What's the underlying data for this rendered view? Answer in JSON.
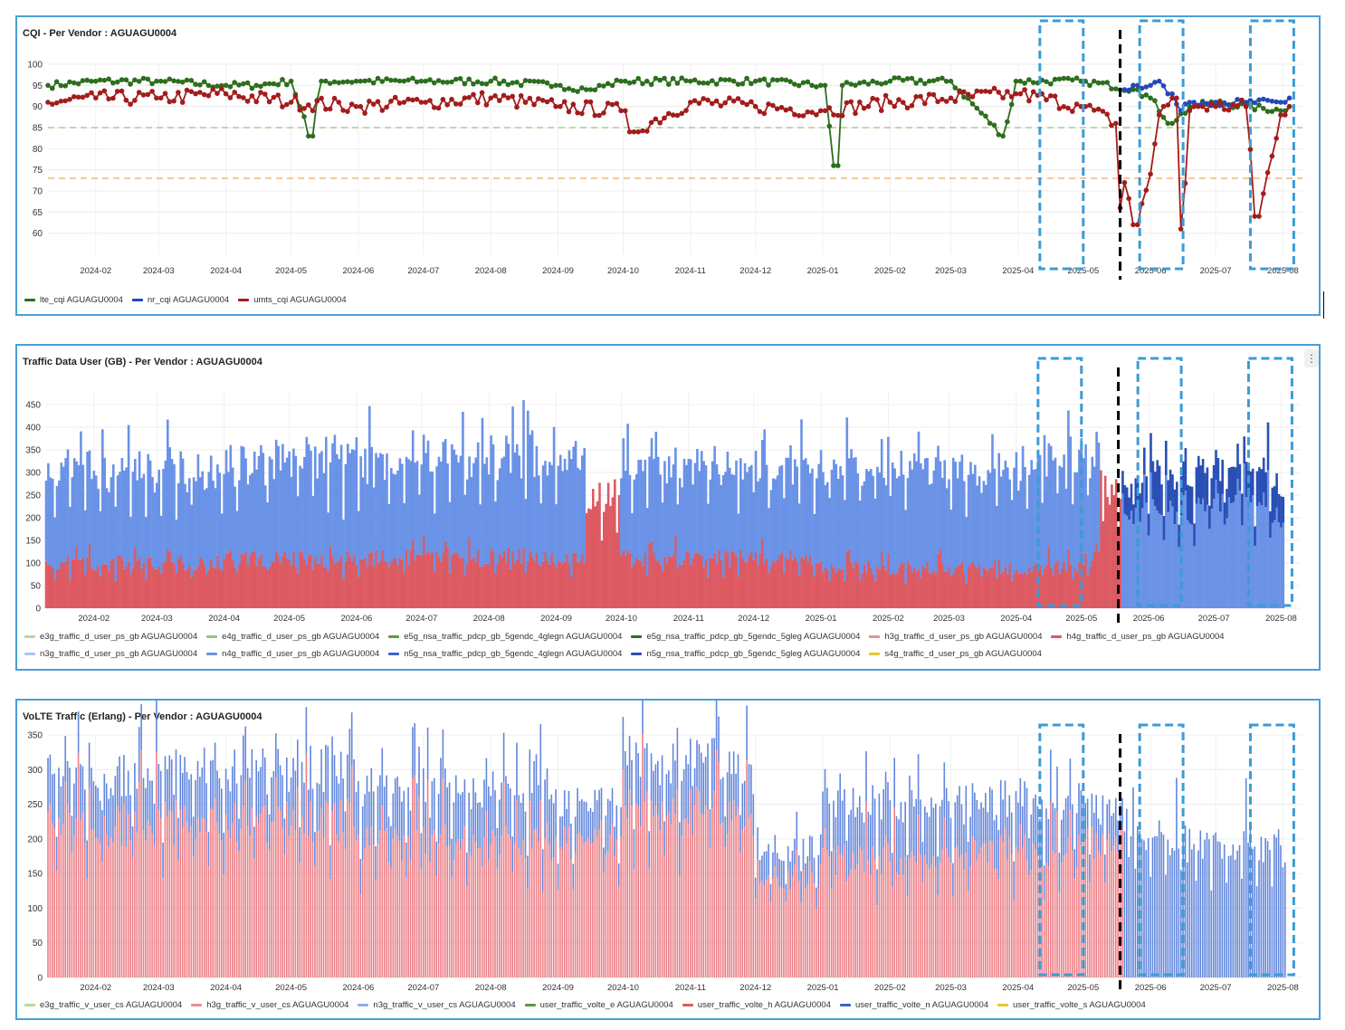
{
  "colors": {
    "lte": "#2d6e1e",
    "nr": "#2348b8",
    "umts": "#a31c1c",
    "traffic_red": "#dd5a62",
    "traffic_blue": "#6a92e6",
    "traffic_darkblue": "#2a4fb5",
    "traffic_lightblue": "#a8c4f2",
    "volte_red": "#ec7f87",
    "volte_blue": "#6287dc",
    "threshold_green": "#93c47d",
    "threshold_orange": "#f0a860",
    "highlight_box": "#3c9bd6",
    "cutover_line": "#000000"
  },
  "x_ticks": [
    "2024-02",
    "2024-03",
    "2024-04",
    "2024-05",
    "2024-06",
    "2024-07",
    "2024-08",
    "2024-09",
    "2024-10",
    "2024-11",
    "2024-12",
    "2025-01",
    "2025-02",
    "2025-03",
    "2025-04",
    "2025-05",
    "2025-06",
    "2025-07",
    "2025-08"
  ],
  "panels": [
    {
      "id": "cqi",
      "title": "CQI - Per Vendor : AGUAGU0004",
      "legend": [
        {
          "label": "lte_cqi AGUAGU0004",
          "color": "#2d6e1e"
        },
        {
          "label": "nr_cqi AGUAGU0004",
          "color": "#2348b8"
        },
        {
          "label": "umts_cqi AGUAGU0004",
          "color": "#a31c1c"
        }
      ]
    },
    {
      "id": "traffic",
      "title": "Traffic Data User (GB) - Per Vendor : AGUAGU0004",
      "menu_icon": "⋮",
      "legend": [
        {
          "label": "e3g_traffic_d_user_ps_gb AGUAGU0004",
          "color": "#b5dca0"
        },
        {
          "label": "e4g_traffic_d_user_ps_gb AGUAGU0004",
          "color": "#93c47d"
        },
        {
          "label": "e5g_nsa_traffic_pdcp_gb_5gendc_4glegn AGUAGU0004",
          "color": "#5b9a45"
        },
        {
          "label": "e5g_nsa_traffic_pdcp_gb_5gendc_5gleg AGUAGU0004",
          "color": "#2d6e1e"
        },
        {
          "label": "h3g_traffic_d_user_ps_gb AGUAGU0004",
          "color": "#f08a92"
        },
        {
          "label": "h4g_traffic_d_user_ps_gb AGUAGU0004",
          "color": "#dd5a62"
        },
        {
          "label": "n3g_traffic_d_user_ps_gb AGUAGU0004",
          "color": "#a8c4f2"
        },
        {
          "label": "n4g_traffic_d_user_ps_gb AGUAGU0004",
          "color": "#6a92e6"
        },
        {
          "label": "n5g_nsa_traffic_pdcp_gb_5gendc_4glegn AGUAGU0004",
          "color": "#3a64cc"
        },
        {
          "label": "n5g_nsa_traffic_pdcp_gb_5gendc_5gleg AGUAGU0004",
          "color": "#2a4fb5"
        },
        {
          "label": "s4g_traffic_d_user_ps_gb AGUAGU0004",
          "color": "#e8c530"
        }
      ]
    },
    {
      "id": "volte",
      "title": "VoLTE Traffic (Erlang) - Per Vendor : AGUAGU0004",
      "legend": [
        {
          "label": "e3g_traffic_v_user_cs AGUAGU0004",
          "color": "#b5dca0"
        },
        {
          "label": "h3g_traffic_v_user_cs AGUAGU0004",
          "color": "#f08a92"
        },
        {
          "label": "n3g_traffic_v_user_cs AGUAGU0004",
          "color": "#8eaef0"
        },
        {
          "label": "user_traffic_volte_e AGUAGU0004",
          "color": "#5b9a45"
        },
        {
          "label": "user_traffic_volte_h AGUAGU0004",
          "color": "#dd5a62"
        },
        {
          "label": "user_traffic_volte_n AGUAGU0004",
          "color": "#3a64cc"
        },
        {
          "label": "user_traffic_volte_s AGUAGU0004",
          "color": "#e8c530"
        }
      ]
    }
  ],
  "chart_data": [
    {
      "type": "line",
      "title": "CQI - Per Vendor : AGUAGU0004",
      "x_range": [
        "2024-01-10",
        "2025-08-10"
      ],
      "ylim": [
        55,
        100
      ],
      "yticks": [
        60,
        65,
        70,
        75,
        80,
        85,
        90,
        95,
        100
      ],
      "grid": true,
      "legend_position": "bottom-left",
      "thresholds": [
        {
          "value": 85,
          "color": "#93c47d",
          "style": "dashed"
        },
        {
          "value": 73,
          "color": "#f0a860",
          "style": "dashed"
        }
      ],
      "series": [
        {
          "name": "lte_cqi AGUAGU0004",
          "color": "#2d6e1e",
          "x": [
            "2024-01-10",
            "2024-02-01",
            "2024-03-01",
            "2024-04-01",
            "2024-04-15",
            "2024-05-01",
            "2024-05-10",
            "2024-05-15",
            "2024-06-01",
            "2024-07-01",
            "2024-08-01",
            "2024-09-01",
            "2024-09-15",
            "2024-10-01",
            "2024-11-01",
            "2024-12-01",
            "2025-01-01",
            "2025-01-07",
            "2025-01-10",
            "2025-02-01",
            "2025-03-01",
            "2025-03-25",
            "2025-04-01",
            "2025-05-01",
            "2025-05-25",
            "2025-06-01",
            "2025-06-10",
            "2025-06-20",
            "2025-07-01",
            "2025-07-15",
            "2025-08-01",
            "2025-08-05"
          ],
          "values": [
            95,
            96,
            96,
            95,
            95,
            96,
            83,
            96,
            96,
            96,
            96,
            95,
            94,
            96,
            96,
            96,
            95,
            76,
            95,
            96,
            96,
            83,
            96,
            96,
            94,
            92,
            86,
            90,
            91,
            90,
            89,
            90
          ]
        },
        {
          "name": "nr_cqi AGUAGU0004",
          "color": "#2348b8",
          "x": [
            "2025-05-20",
            "2025-05-25",
            "2025-06-01",
            "2025-06-05",
            "2025-06-10",
            "2025-06-15",
            "2025-06-20",
            "2025-07-01",
            "2025-07-15",
            "2025-08-01",
            "2025-08-05"
          ],
          "values": [
            94,
            95,
            95,
            96,
            93,
            89,
            91,
            91,
            91,
            91,
            92
          ]
        },
        {
          "name": "umts_cqi AGUAGU0004",
          "color": "#a31c1c",
          "x": [
            "2024-01-10",
            "2024-02-01",
            "2024-03-01",
            "2024-04-01",
            "2024-05-01",
            "2024-06-01",
            "2024-07-01",
            "2024-08-01",
            "2024-09-01",
            "2024-10-01",
            "2024-10-05",
            "2024-11-01",
            "2024-12-01",
            "2025-01-01",
            "2025-02-01",
            "2025-03-01",
            "2025-04-01",
            "2025-05-01",
            "2025-05-16",
            "2025-05-18",
            "2025-05-20",
            "2025-05-25",
            "2025-06-01",
            "2025-06-05",
            "2025-06-12",
            "2025-06-15",
            "2025-06-20",
            "2025-06-22",
            "2025-07-01",
            "2025-07-15",
            "2025-07-20",
            "2025-08-01",
            "2025-08-05"
          ],
          "values": [
            91,
            92,
            92,
            93,
            91,
            90,
            91,
            92,
            90,
            89,
            84,
            91,
            90,
            89,
            91,
            92,
            93,
            90,
            86,
            66,
            72,
            62,
            74,
            88,
            92,
            61,
            89,
            90,
            90,
            90,
            64,
            88,
            90
          ]
        }
      ]
    },
    {
      "type": "bar",
      "stacked": true,
      "title": "Traffic Data User (GB) - Per Vendor : AGUAGU0004",
      "x_range": [
        "2024-01-10",
        "2025-08-10"
      ],
      "ylim": [
        0,
        480
      ],
      "yticks": [
        0,
        50,
        100,
        150,
        200,
        250,
        300,
        350,
        400,
        450
      ],
      "grid": true,
      "legend_position": "bottom-left",
      "series": [
        {
          "name": "h4g_traffic_d_user_ps_gb AGUAGU0004",
          "color": "#dd5a62",
          "x": [
            "2024-01-10",
            "2024-04-01",
            "2024-08-01",
            "2024-09-05",
            "2024-09-15",
            "2024-10-01",
            "2025-01-01",
            "2025-05-01",
            "2025-05-10",
            "2025-05-20"
          ],
          "values": [
            100,
            110,
            115,
            110,
            250,
            110,
            90,
            110,
            260,
            0
          ]
        },
        {
          "name": "n4g_traffic_d_user_ps_gb AGUAGU0004",
          "color": "#6a92e6",
          "x": [
            "2024-01-10",
            "2024-04-01",
            "2024-08-01",
            "2024-09-05",
            "2024-09-15",
            "2024-10-01",
            "2025-01-01",
            "2025-05-01",
            "2025-05-10",
            "2025-05-20",
            "2025-08-01"
          ],
          "values": [
            200,
            215,
            220,
            220,
            0,
            200,
            220,
            215,
            0,
            220,
            200
          ]
        },
        {
          "name": "n5g_nsa_traffic_pdcp_gb_5gendc_5gleg AGUAGU0004",
          "color": "#2a4fb5",
          "x": [
            "2025-05-20",
            "2025-06-01",
            "2025-07-01",
            "2025-08-01"
          ],
          "values": [
            60,
            80,
            70,
            60
          ]
        }
      ]
    },
    {
      "type": "bar",
      "stacked": true,
      "title": "VoLTE Traffic (Erlang) - Per Vendor : AGUAGU0004",
      "x_range": [
        "2024-01-10",
        "2025-08-10"
      ],
      "ylim": [
        0,
        350
      ],
      "yticks": [
        0,
        50,
        100,
        150,
        200,
        250,
        300,
        350
      ],
      "grid": true,
      "legend_position": "bottom-left",
      "series": [
        {
          "name": "user_traffic_volte_h AGUAGU0004",
          "color": "#ec7f87",
          "x": [
            "2024-01-10",
            "2024-03-01",
            "2024-06-01",
            "2024-09-01",
            "2024-10-01",
            "2024-12-01",
            "2025-01-01",
            "2025-03-01",
            "2025-05-01",
            "2025-05-20"
          ],
          "values": [
            220,
            225,
            195,
            200,
            240,
            150,
            170,
            180,
            200,
            0
          ]
        },
        {
          "name": "user_traffic_volte_n AGUAGU0004",
          "color": "#6287dc",
          "x": [
            "2024-01-10",
            "2024-03-01",
            "2024-06-01",
            "2024-09-01",
            "2024-10-01",
            "2024-12-01",
            "2025-01-01",
            "2025-03-01",
            "2025-05-01",
            "2025-05-20",
            "2025-06-15",
            "2025-08-01"
          ],
          "values": [
            70,
            75,
            75,
            50,
            70,
            40,
            80,
            70,
            50,
            200,
            195,
            170
          ]
        }
      ]
    }
  ]
}
